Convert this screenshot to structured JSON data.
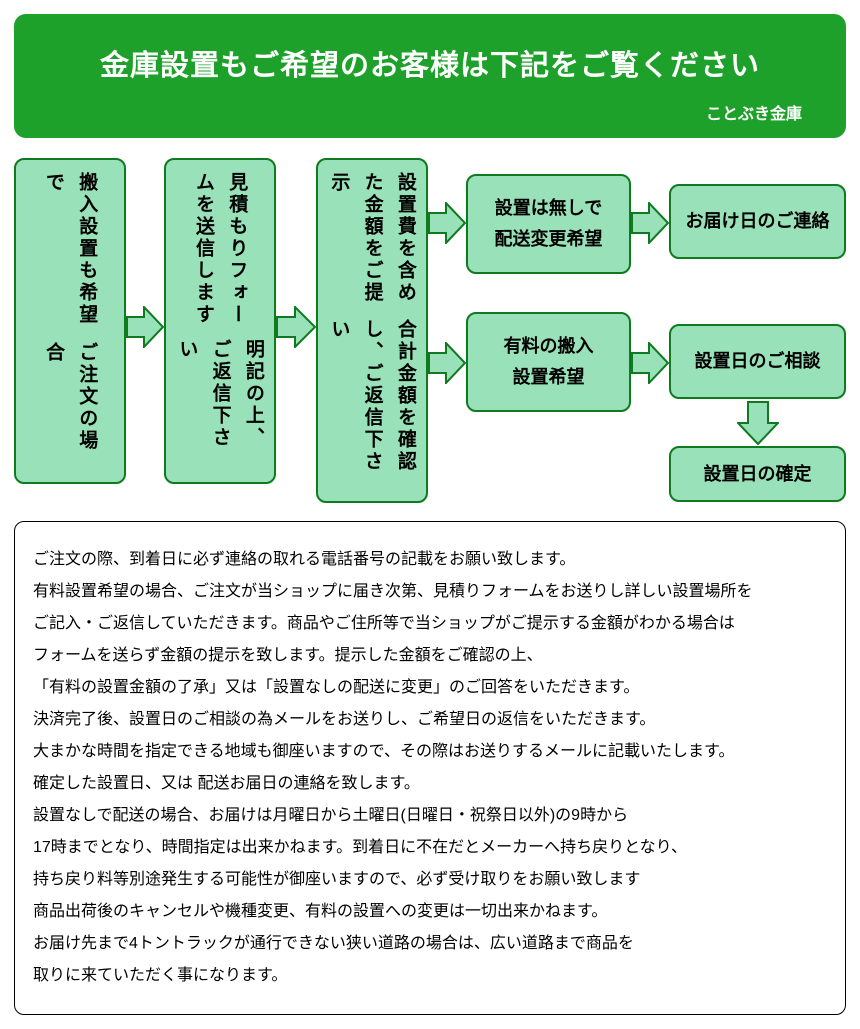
{
  "header": {
    "title": "金庫設置もご希望のお客様は下記をご覧ください",
    "subtitle": "ことぶき金庫",
    "bg_color": "#1ea12b",
    "text_color": "#ffffff",
    "radius": 12,
    "title_fontsize": 29,
    "sub_fontsize": 16
  },
  "flow": {
    "box_fill": "#99e1b8",
    "box_border": "#0f7a1f",
    "arrow_fill": "#99e1b8",
    "arrow_stroke": "#0f7a1f",
    "nodes": {
      "n1": {
        "line1": "搬入設置も希望で",
        "line2": "ご注文の場合"
      },
      "n2": {
        "line1": "見積もりフォームを送信します",
        "line2": "明記の上、ご返信下さい"
      },
      "n3": {
        "line1": "設置費を含めた金額をご提示",
        "line2": "合計金額を確認し、ご返信下さい"
      },
      "n4": {
        "line1": "設置は無しで",
        "line2": "配送変更希望"
      },
      "n5": {
        "text": "お届け日のご連絡"
      },
      "n6": {
        "line1": "有料の搬入",
        "line2": "設置希望"
      },
      "n7": {
        "text": "設置日のご相談"
      },
      "n8": {
        "text": "設置日の確定"
      }
    }
  },
  "detail": {
    "lines": [
      "ご注文の際、到着日に必ず連絡の取れる電話番号の記載をお願い致します。",
      "有料設置希望の場合、ご注文が当ショップに届き次第、見積りフォームをお送りし詳しい設置場所を",
      "ご記入・ご返信していただきます。商品やご住所等で当ショップがご提示する金額がわかる場合は",
      "フォームを送らず金額の提示を致します。提示した金額をご確認の上、",
      "「有料の設置金額の了承」又は「設置なしの配送に変更」のご回答をいただきます。",
      "決済完了後、設置日のご相談の為メールをお送りし、ご希望日の返信をいただきます。",
      "大まかな時間を指定できる地域も御座いますので、その際はお送りするメールに記載いたします。",
      "確定した設置日、又は 配送お届日の連絡を致します。",
      "設置なしで配送の場合、お届けは月曜日から土曜日(日曜日・祝祭日以外)の9時から",
      "17時までとなり、時間指定は出来かねます。到着日に不在だとメーカーへ持ち戻りとなり、",
      "持ち戻り料等別途発生する可能性が御座いますので、必ず受け取りをお願い致します",
      "商品出荷後のキャンセルや機種変更、有料の設置への変更は一切出来かねます。",
      "お届け先まで4トントラックが通行できない狭い道路の場合は、広い道路まで商品を",
      "取りに来ていただく事になります。"
    ],
    "fontsize": 16,
    "line_height": 2.0
  }
}
